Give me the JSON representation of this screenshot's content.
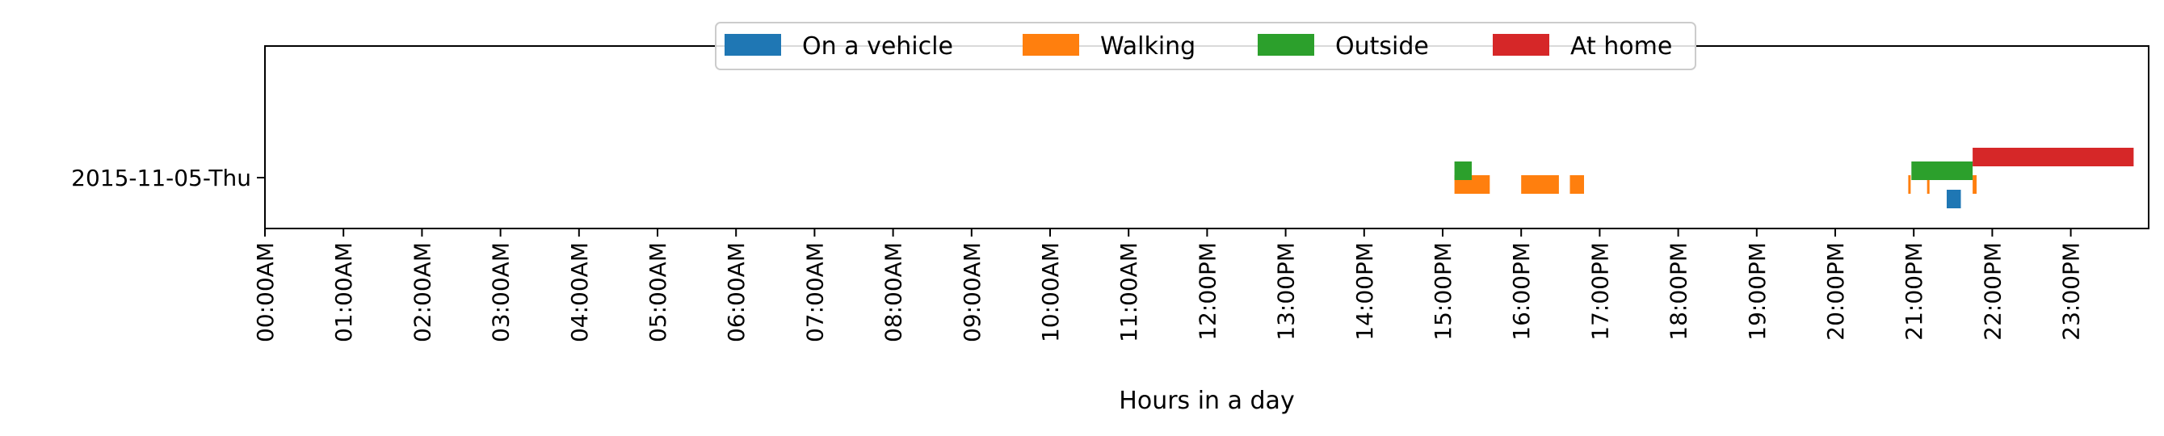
{
  "chart_data": {
    "type": "timeline",
    "xlabel": "Hours in a day",
    "xlim": [
      0,
      24
    ],
    "x_ticks": [
      "00:00AM",
      "01:00AM",
      "02:00AM",
      "03:00AM",
      "04:00AM",
      "05:00AM",
      "06:00AM",
      "07:00AM",
      "08:00AM",
      "09:00AM",
      "10:00AM",
      "11:00AM",
      "12:00PM",
      "13:00PM",
      "14:00PM",
      "15:00PM",
      "16:00PM",
      "17:00PM",
      "18:00PM",
      "19:00PM",
      "20:00PM",
      "21:00PM",
      "22:00PM",
      "23:00PM"
    ],
    "rows": [
      "2015-11-05-Thu"
    ],
    "grid": false,
    "legend_placement": "top-center",
    "series": [
      {
        "name": "On a vehicle",
        "color": "#1f77b4",
        "intervals": [
          [
            21.42,
            21.6
          ]
        ]
      },
      {
        "name": "Walking",
        "color": "#ff7f0e",
        "intervals": [
          [
            15.15,
            15.6
          ],
          [
            16.0,
            16.48
          ],
          [
            16.62,
            16.8
          ],
          [
            20.93,
            20.96
          ],
          [
            21.17,
            21.2
          ],
          [
            21.75,
            21.8
          ]
        ]
      },
      {
        "name": "Outside",
        "color": "#2ca02c",
        "intervals": [
          [
            15.15,
            15.37
          ],
          [
            20.97,
            21.75
          ]
        ]
      },
      {
        "name": "At home",
        "color": "#d62728",
        "intervals": [
          [
            21.75,
            23.8
          ]
        ]
      }
    ]
  }
}
